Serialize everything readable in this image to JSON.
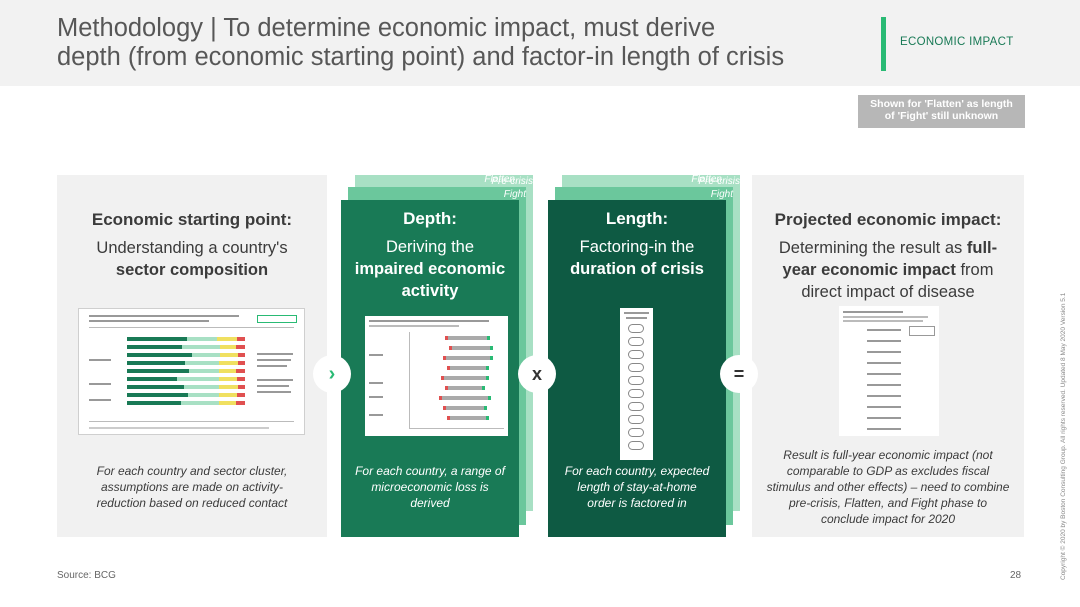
{
  "header": {
    "title_line1": "Methodology | To determine economic impact, must derive",
    "title_line2": "depth (from economic starting point) and factor-in length of crisis",
    "tag": "ECONOMIC IMPACT"
  },
  "note": {
    "line1": "Shown for 'Flatten' as length",
    "line2": "of 'Fight' still unknown"
  },
  "panels": {
    "starting": {
      "heading": "Economic starting point:",
      "body_line1": "Understanding a country's",
      "body_bold": "sector composition",
      "footer": "For each country and sector cluster, assumptions are made on activity-reduction based on reduced contact"
    },
    "depth": {
      "layers": [
        "Pre-crisis",
        "Fight",
        "Flatten"
      ],
      "heading": "Depth:",
      "body_line1": "Deriving the",
      "body_bold1": "impaired economic",
      "body_bold2": "activity",
      "footer": "For each country, a range of microeconomic loss is derived"
    },
    "length": {
      "layers": [
        "Pre-crisis",
        "Fight",
        "Flatten"
      ],
      "heading": "Length:",
      "body_line1": "Factoring-in the",
      "body_bold": "duration of crisis",
      "footer": "For each country, expected length of stay-at-home order is factored in"
    },
    "projected": {
      "heading": "Projected economic impact:",
      "body_pre": "Determining the result as ",
      "body_bold1": "full-",
      "body_bold2": "year economic impact",
      "body_post": " from",
      "body_line3": "direct impact of disease",
      "footer": "Result is full-year economic impact (not comparable to GDP as excludes fiscal stimulus and other effects) – need to combine pre-crisis, Flatten, and Fight phase to conclude impact for 2020"
    }
  },
  "operators": {
    "first": "›",
    "second": "x",
    "third": "="
  },
  "colors": {
    "green_accent": "#29ba74",
    "dark_green": "#197a56",
    "deep_green": "#0e5a43",
    "panel_grey": "#f1f1f1"
  },
  "footer": {
    "source": "Source: BCG",
    "page": "28",
    "copyright": "Copyright © 2020 by Boston Consulting Group. All rights reserved.  Updated 8 May 2020 Version 5.1"
  }
}
